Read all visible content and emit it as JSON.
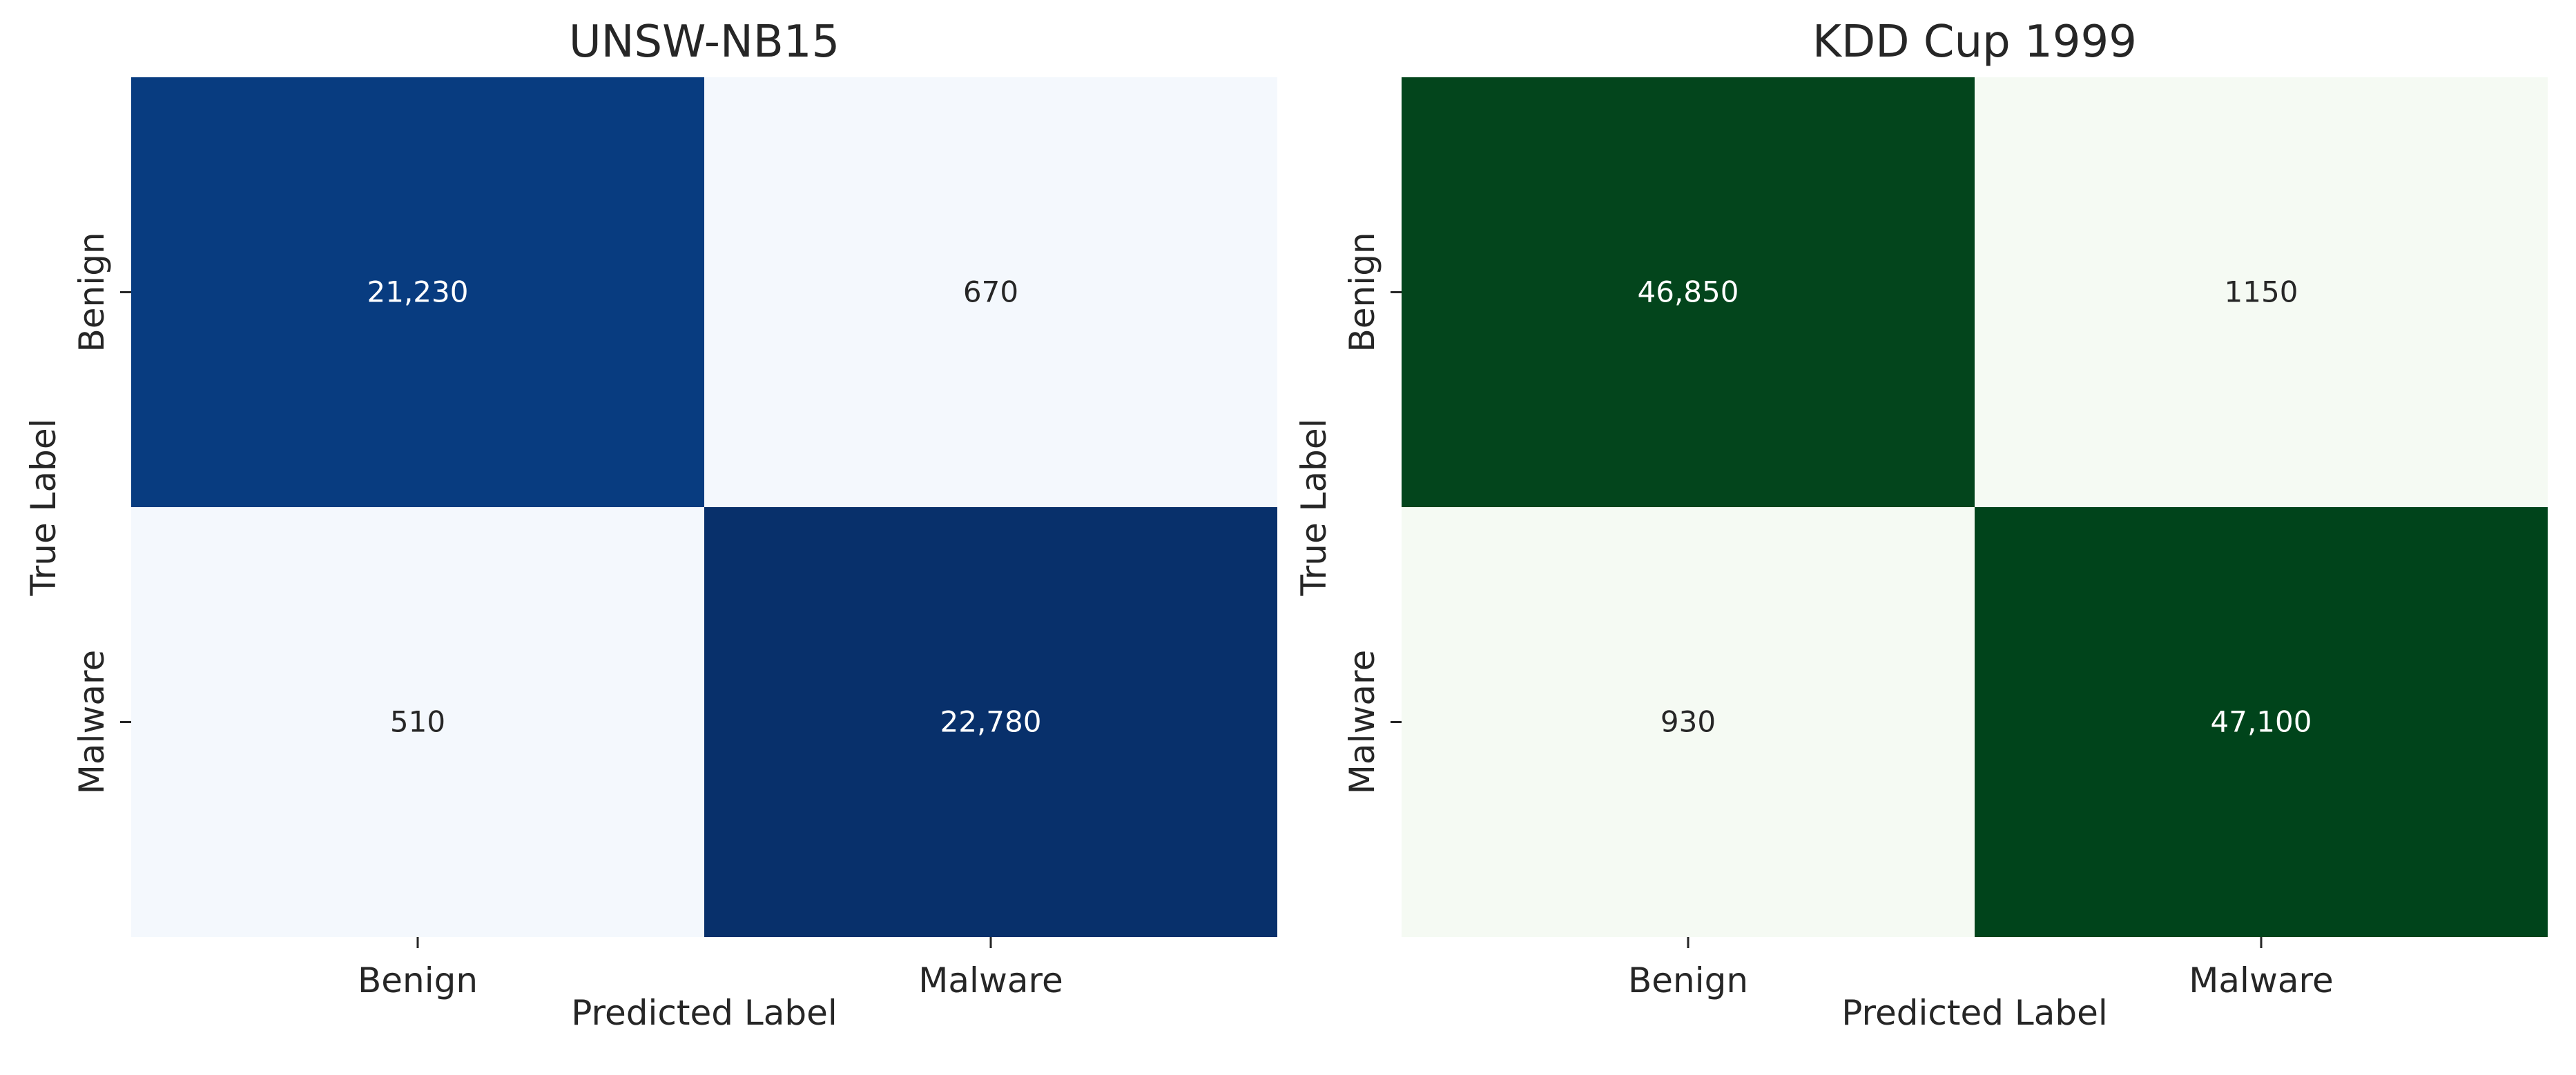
{
  "chart_data": [
    {
      "type": "heatmap",
      "title": "UNSW-NB15",
      "xlabel": "Predicted Label",
      "ylabel": "True Label",
      "x_categories": [
        "Benign",
        "Malware"
      ],
      "y_categories": [
        "Benign",
        "Malware"
      ],
      "values": [
        [
          21230,
          670
        ],
        [
          510,
          22780
        ]
      ],
      "cell_labels": [
        [
          "21,230",
          "670"
        ],
        [
          "510",
          "22,780"
        ]
      ],
      "colormap": "Blues",
      "colors": {
        "high": "#083c80",
        "high_alt": "#08306b",
        "low": "#f4f8fd",
        "text_on_dark": "#ffffff",
        "text_on_light": "#262626"
      }
    },
    {
      "type": "heatmap",
      "title": "KDD Cup 1999",
      "xlabel": "Predicted Label",
      "ylabel": "True Label",
      "x_categories": [
        "Benign",
        "Malware"
      ],
      "y_categories": [
        "Benign",
        "Malware"
      ],
      "values": [
        [
          46850,
          1150
        ],
        [
          930,
          47100
        ]
      ],
      "cell_labels": [
        [
          "46,850",
          "1150"
        ],
        [
          "930",
          "47,100"
        ]
      ],
      "colormap": "Greens",
      "colors": {
        "high": "#03451c",
        "high_alt": "#00441b",
        "low": "#f5faf3",
        "text_on_dark": "#ffffff",
        "text_on_light": "#262626"
      }
    }
  ]
}
